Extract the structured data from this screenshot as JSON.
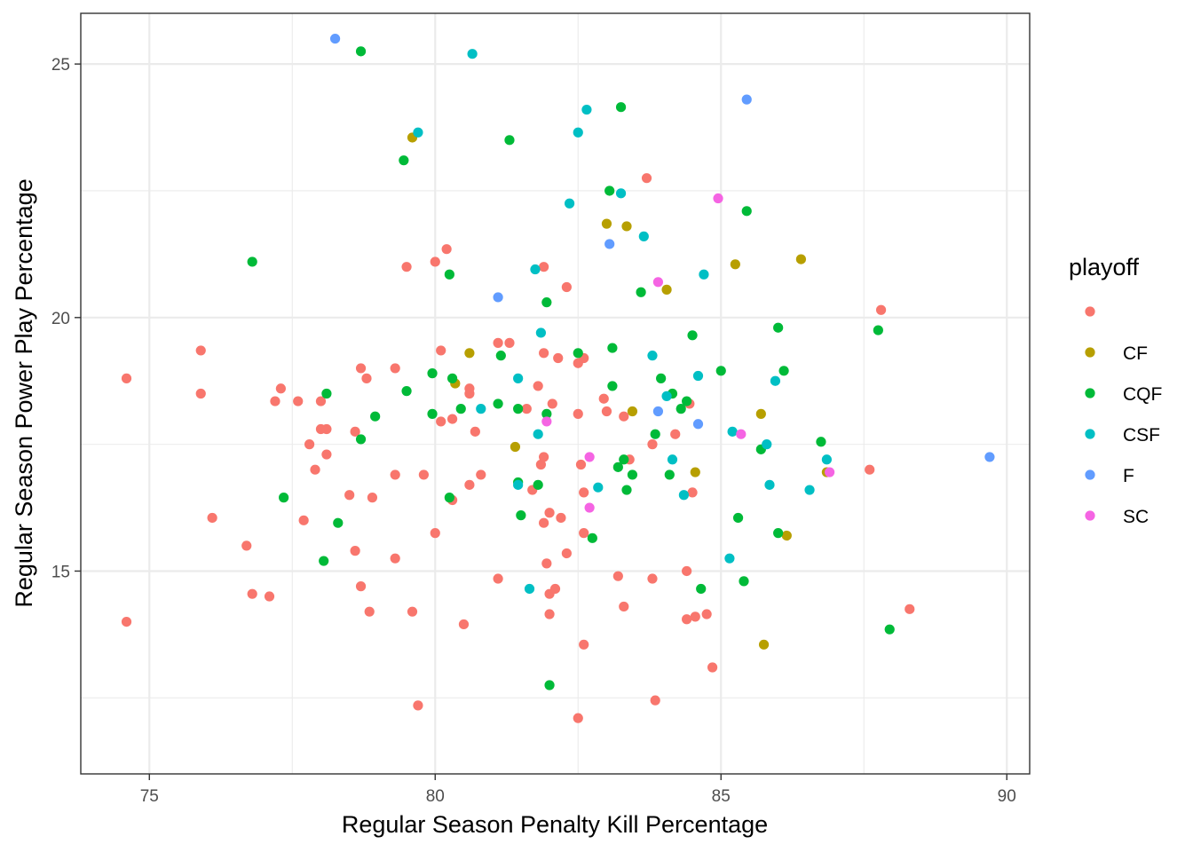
{
  "chart_data": {
    "type": "scatter",
    "xlabel": "Regular Season Penalty Kill Percentage",
    "ylabel": "Regular Season Power Play Percentage",
    "xlim": [
      73.8,
      90.4
    ],
    "ylim": [
      11.0,
      26.0
    ],
    "x_ticks": [
      75,
      80,
      85,
      90
    ],
    "y_ticks": [
      15,
      20,
      25
    ],
    "x_tick_labels": [
      "75",
      "80",
      "85",
      "90"
    ],
    "y_tick_labels": [
      "15",
      "20",
      "25"
    ],
    "grid": true,
    "legend": {
      "title": "playoff",
      "placement": "right",
      "entries": [
        {
          "label": "",
          "color": "#F8766D"
        },
        {
          "label": "CF",
          "color": "#B79F00"
        },
        {
          "label": "CQF",
          "color": "#00BA38"
        },
        {
          "label": "CSF",
          "color": "#00BFC4"
        },
        {
          "label": "F",
          "color": "#619CFF"
        },
        {
          "label": "SC",
          "color": "#F564E3"
        }
      ]
    },
    "series": [
      {
        "color": "#F8766D",
        "points": [
          [
            74.6,
            18.8
          ],
          [
            74.6,
            14.0
          ],
          [
            75.9,
            18.5
          ],
          [
            75.9,
            19.35
          ],
          [
            76.1,
            16.05
          ],
          [
            76.7,
            15.5
          ],
          [
            76.8,
            14.55
          ],
          [
            77.1,
            14.5
          ],
          [
            77.2,
            18.35
          ],
          [
            77.3,
            18.6
          ],
          [
            77.6,
            18.35
          ],
          [
            77.7,
            16.0
          ],
          [
            77.8,
            17.5
          ],
          [
            77.9,
            17.0
          ],
          [
            78.0,
            18.35
          ],
          [
            78.0,
            17.8
          ],
          [
            78.1,
            17.8
          ],
          [
            78.1,
            17.3
          ],
          [
            78.5,
            16.5
          ],
          [
            78.6,
            17.75
          ],
          [
            78.6,
            15.4
          ],
          [
            78.7,
            19.0
          ],
          [
            78.7,
            14.7
          ],
          [
            78.8,
            18.8
          ],
          [
            78.85,
            14.2
          ],
          [
            78.9,
            16.45
          ],
          [
            79.3,
            19.0
          ],
          [
            79.3,
            16.9
          ],
          [
            79.3,
            15.25
          ],
          [
            79.5,
            21.0
          ],
          [
            79.6,
            14.2
          ],
          [
            79.7,
            12.35
          ],
          [
            79.8,
            16.9
          ],
          [
            80.0,
            21.1
          ],
          [
            80.0,
            15.75
          ],
          [
            80.1,
            19.35
          ],
          [
            80.1,
            17.95
          ],
          [
            80.2,
            21.35
          ],
          [
            80.3,
            18.0
          ],
          [
            80.3,
            16.4
          ],
          [
            80.5,
            13.95
          ],
          [
            80.6,
            18.5
          ],
          [
            80.6,
            18.6
          ],
          [
            80.6,
            16.7
          ],
          [
            80.7,
            17.75
          ],
          [
            80.8,
            16.9
          ],
          [
            81.1,
            19.5
          ],
          [
            81.1,
            14.85
          ],
          [
            81.3,
            19.5
          ],
          [
            81.6,
            18.2
          ],
          [
            81.7,
            16.6
          ],
          [
            81.8,
            18.65
          ],
          [
            81.85,
            17.1
          ],
          [
            81.9,
            21.0
          ],
          [
            81.9,
            19.3
          ],
          [
            81.9,
            17.25
          ],
          [
            81.9,
            15.95
          ],
          [
            81.95,
            15.15
          ],
          [
            82.0,
            16.15
          ],
          [
            82.0,
            14.55
          ],
          [
            82.0,
            14.15
          ],
          [
            82.05,
            18.3
          ],
          [
            82.1,
            14.65
          ],
          [
            82.15,
            19.2
          ],
          [
            82.2,
            16.05
          ],
          [
            82.3,
            20.6
          ],
          [
            82.3,
            15.35
          ],
          [
            82.5,
            19.1
          ],
          [
            82.5,
            18.1
          ],
          [
            82.55,
            17.1
          ],
          [
            82.6,
            19.2
          ],
          [
            82.6,
            16.55
          ],
          [
            82.6,
            15.75
          ],
          [
            82.6,
            13.55
          ],
          [
            82.5,
            12.1
          ],
          [
            82.95,
            18.4
          ],
          [
            83.0,
            18.15
          ],
          [
            83.2,
            14.9
          ],
          [
            83.3,
            18.05
          ],
          [
            83.3,
            14.3
          ],
          [
            83.4,
            17.2
          ],
          [
            83.7,
            22.75
          ],
          [
            83.8,
            17.5
          ],
          [
            83.8,
            14.85
          ],
          [
            83.85,
            12.45
          ],
          [
            84.2,
            17.7
          ],
          [
            84.4,
            15.0
          ],
          [
            84.4,
            14.05
          ],
          [
            84.45,
            18.3
          ],
          [
            84.5,
            16.55
          ],
          [
            84.55,
            14.1
          ],
          [
            84.75,
            14.15
          ],
          [
            84.85,
            13.1
          ],
          [
            87.6,
            17.0
          ],
          [
            87.8,
            20.15
          ],
          [
            88.3,
            14.25
          ]
        ]
      },
      {
        "color": "#B79F00",
        "points": [
          [
            79.6,
            23.55
          ],
          [
            80.35,
            18.7
          ],
          [
            80.6,
            19.3
          ],
          [
            81.4,
            17.45
          ],
          [
            83.0,
            21.85
          ],
          [
            83.35,
            21.8
          ],
          [
            83.45,
            18.15
          ],
          [
            84.05,
            20.55
          ],
          [
            84.55,
            16.95
          ],
          [
            85.25,
            21.05
          ],
          [
            85.7,
            18.1
          ],
          [
            85.75,
            13.55
          ],
          [
            86.15,
            15.7
          ],
          [
            86.4,
            21.15
          ],
          [
            86.85,
            16.95
          ]
        ]
      },
      {
        "color": "#00BA38",
        "points": [
          [
            76.8,
            21.1
          ],
          [
            77.35,
            16.45
          ],
          [
            78.05,
            15.2
          ],
          [
            78.1,
            18.5
          ],
          [
            78.3,
            15.95
          ],
          [
            78.7,
            17.6
          ],
          [
            78.7,
            25.25
          ],
          [
            78.95,
            18.05
          ],
          [
            79.45,
            23.1
          ],
          [
            79.5,
            18.55
          ],
          [
            79.95,
            18.9
          ],
          [
            79.95,
            18.1
          ],
          [
            80.25,
            16.45
          ],
          [
            80.25,
            20.85
          ],
          [
            80.3,
            18.8
          ],
          [
            80.45,
            18.2
          ],
          [
            81.1,
            18.3
          ],
          [
            81.15,
            19.25
          ],
          [
            81.3,
            23.5
          ],
          [
            81.45,
            18.2
          ],
          [
            81.45,
            16.75
          ],
          [
            81.5,
            16.1
          ],
          [
            81.8,
            16.7
          ],
          [
            81.95,
            20.3
          ],
          [
            81.95,
            18.1
          ],
          [
            82.0,
            12.75
          ],
          [
            82.5,
            19.3
          ],
          [
            82.75,
            15.65
          ],
          [
            83.05,
            22.5
          ],
          [
            83.1,
            18.65
          ],
          [
            83.1,
            19.4
          ],
          [
            83.2,
            17.05
          ],
          [
            83.25,
            24.15
          ],
          [
            83.3,
            17.2
          ],
          [
            83.35,
            16.6
          ],
          [
            83.45,
            16.9
          ],
          [
            83.6,
            20.5
          ],
          [
            83.85,
            17.7
          ],
          [
            83.95,
            18.8
          ],
          [
            84.1,
            16.9
          ],
          [
            84.15,
            18.5
          ],
          [
            84.3,
            18.2
          ],
          [
            84.4,
            18.35
          ],
          [
            84.5,
            19.65
          ],
          [
            84.65,
            14.65
          ],
          [
            85.0,
            18.95
          ],
          [
            85.3,
            16.05
          ],
          [
            85.4,
            14.8
          ],
          [
            85.45,
            22.1
          ],
          [
            85.7,
            17.4
          ],
          [
            86.0,
            15.75
          ],
          [
            86.0,
            19.8
          ],
          [
            86.1,
            18.95
          ],
          [
            86.75,
            17.55
          ],
          [
            87.75,
            19.75
          ],
          [
            87.95,
            13.85
          ]
        ]
      },
      {
        "color": "#00BFC4",
        "points": [
          [
            79.7,
            23.65
          ],
          [
            80.65,
            25.2
          ],
          [
            80.8,
            18.2
          ],
          [
            81.45,
            16.7
          ],
          [
            81.45,
            18.8
          ],
          [
            81.65,
            14.65
          ],
          [
            81.8,
            17.7
          ],
          [
            81.75,
            20.95
          ],
          [
            81.85,
            19.7
          ],
          [
            82.35,
            22.25
          ],
          [
            82.5,
            23.65
          ],
          [
            82.65,
            24.1
          ],
          [
            82.85,
            16.65
          ],
          [
            83.25,
            22.45
          ],
          [
            83.65,
            21.6
          ],
          [
            83.8,
            19.25
          ],
          [
            84.05,
            18.45
          ],
          [
            84.15,
            17.2
          ],
          [
            84.35,
            16.5
          ],
          [
            84.6,
            18.85
          ],
          [
            84.7,
            20.85
          ],
          [
            85.15,
            15.25
          ],
          [
            85.2,
            17.75
          ],
          [
            85.8,
            17.5
          ],
          [
            85.85,
            16.7
          ],
          [
            85.95,
            18.75
          ],
          [
            86.55,
            16.6
          ],
          [
            86.85,
            17.2
          ]
        ]
      },
      {
        "color": "#619CFF",
        "points": [
          [
            78.25,
            25.5
          ],
          [
            81.1,
            20.4
          ],
          [
            83.05,
            21.45
          ],
          [
            83.9,
            18.15
          ],
          [
            84.6,
            17.9
          ],
          [
            85.45,
            24.3
          ],
          [
            89.7,
            17.25
          ]
        ]
      },
      {
        "color": "#F564E3",
        "points": [
          [
            81.95,
            17.95
          ],
          [
            82.7,
            17.25
          ],
          [
            82.7,
            16.25
          ],
          [
            83.9,
            20.7
          ],
          [
            84.95,
            22.35
          ],
          [
            85.35,
            17.7
          ],
          [
            86.9,
            16.95
          ]
        ]
      }
    ]
  }
}
